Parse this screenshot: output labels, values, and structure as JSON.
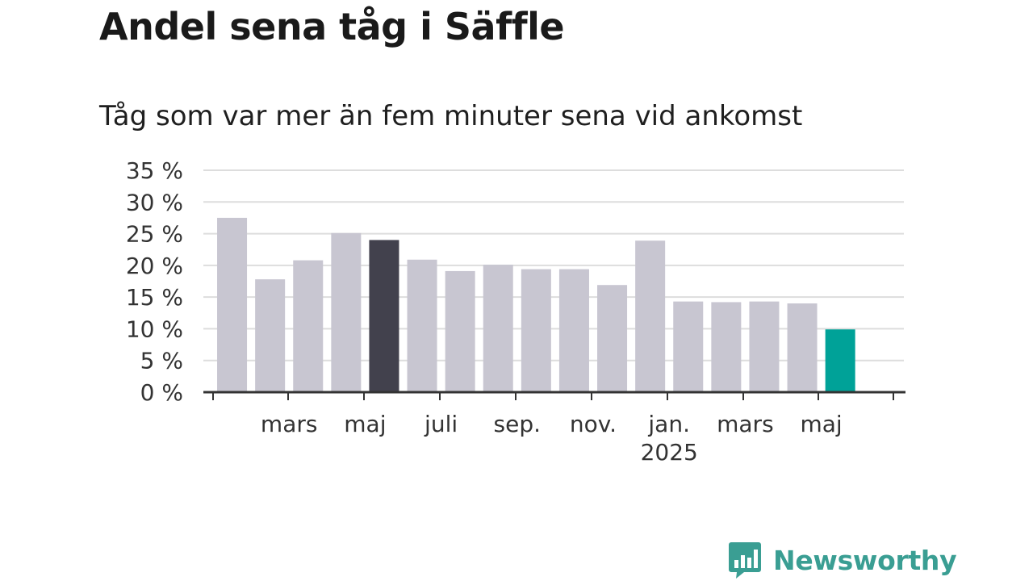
{
  "title": "Andel sena tåg i Säffle",
  "subtitle": "Tåg som var mer än fem minuter sena vid ankomst",
  "brand": {
    "name": "Newsworthy",
    "icon": "bar-chart-speech-bubble-icon",
    "color": "#3a9e93"
  },
  "chart_data": {
    "type": "bar",
    "title": "Andel sena tåg i Säffle",
    "subtitle": "Tåg som var mer än fem minuter sena vid ankomst",
    "ylabel": "",
    "xlabel": "",
    "ylim": [
      0,
      35
    ],
    "yticks": [
      0,
      5,
      10,
      15,
      20,
      25,
      30,
      35
    ],
    "ytick_labels": [
      "0 %",
      "5 %",
      "10 %",
      "15 %",
      "20 %",
      "25 %",
      "30 %",
      "35 %"
    ],
    "grid": true,
    "categories": [
      "2024-02",
      "2024-03",
      "2024-04",
      "2024-05",
      "2024-06",
      "2024-07",
      "2024-08",
      "2024-09",
      "2024-10",
      "2024-11",
      "2024-12",
      "2025-01",
      "2025-02",
      "2025-03",
      "2025-04",
      "2025-05",
      "2025-06"
    ],
    "values": [
      27.5,
      17.8,
      20.8,
      25.1,
      24.0,
      20.9,
      19.1,
      20.1,
      19.4,
      19.4,
      16.9,
      23.9,
      14.3,
      14.2,
      14.3,
      14.0,
      9.9
    ],
    "bar_colors": [
      "#c8c6d1",
      "#c8c6d1",
      "#c8c6d1",
      "#c8c6d1",
      "#42414d",
      "#c8c6d1",
      "#c8c6d1",
      "#c8c6d1",
      "#c8c6d1",
      "#c8c6d1",
      "#c8c6d1",
      "#c8c6d1",
      "#c8c6d1",
      "#c8c6d1",
      "#c8c6d1",
      "#c8c6d1",
      "#00a298"
    ],
    "xtick_labels": [
      {
        "at": "2024-03",
        "label": "mars",
        "sub": ""
      },
      {
        "at": "2024-05",
        "label": "maj",
        "sub": ""
      },
      {
        "at": "2024-07",
        "label": "juli",
        "sub": ""
      },
      {
        "at": "2024-09",
        "label": "sep.",
        "sub": ""
      },
      {
        "at": "2024-11",
        "label": "nov.",
        "sub": ""
      },
      {
        "at": "2025-01",
        "label": "jan.",
        "sub": "2025"
      },
      {
        "at": "2025-03",
        "label": "mars",
        "sub": ""
      },
      {
        "at": "2025-05",
        "label": "maj",
        "sub": ""
      }
    ],
    "colors": {
      "default": "#c8c6d1",
      "highlight_dark": "#42414d",
      "highlight_accent": "#00a298",
      "grid": "#dddddd",
      "axis": "#333333"
    }
  }
}
